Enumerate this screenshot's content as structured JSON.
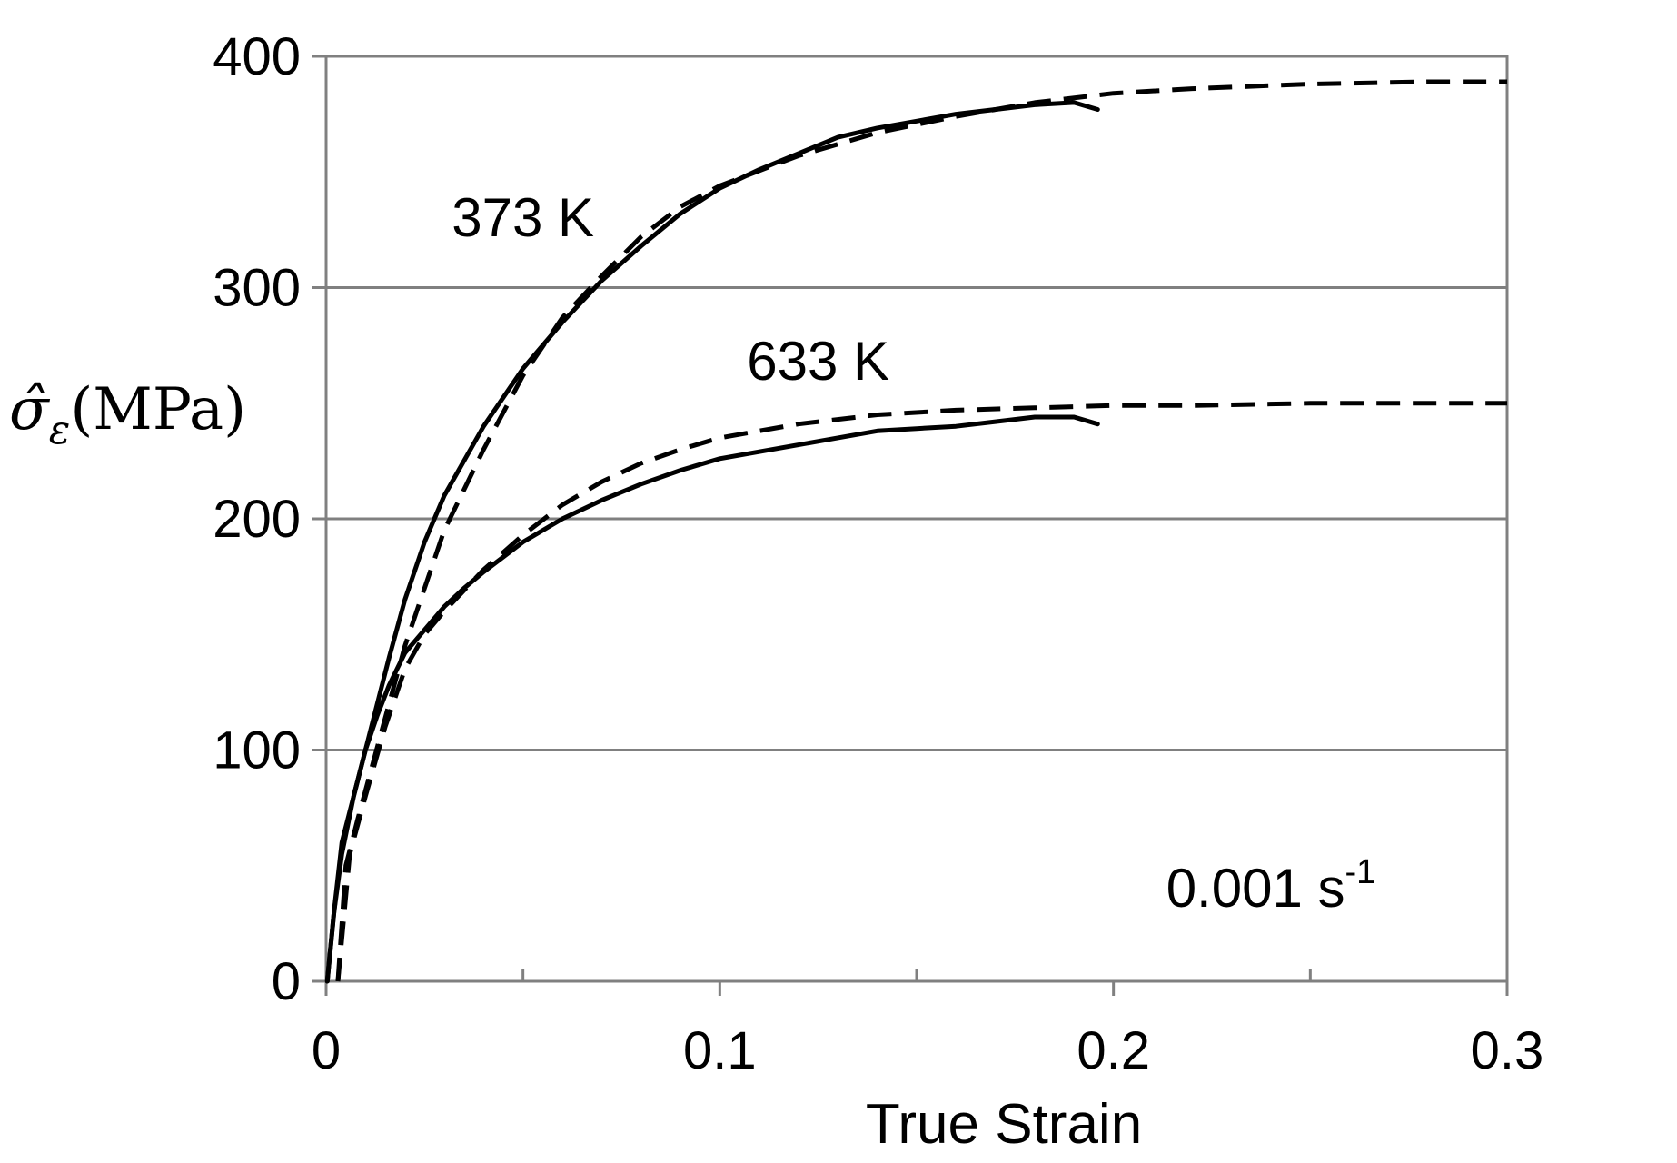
{
  "chart_data": {
    "type": "line",
    "title": "",
    "xlabel": "True Strain",
    "ylabel": "σ̂ε(MPa)",
    "ylabel_symbol": "σ̂",
    "ylabel_subscript": "ε",
    "ylabel_unit": "(MPa)",
    "xlim": [
      0,
      0.3
    ],
    "ylim": [
      0,
      400
    ],
    "xticks": [
      0,
      0.1,
      0.2,
      0.3
    ],
    "xtick_labels": [
      "0",
      "0.1",
      "0.2",
      "0.3"
    ],
    "xticks_minor": [
      0.05,
      0.15,
      0.25
    ],
    "yticks": [
      0,
      100,
      200,
      300,
      400
    ],
    "ytick_labels": [
      "0",
      "100",
      "200",
      "300",
      "400"
    ],
    "grid": "horizontal",
    "legend": "none",
    "annotations": [
      {
        "text": "373 K",
        "x": 0.05,
        "y": 330
      },
      {
        "text": "633 K",
        "x": 0.125,
        "y": 268
      },
      {
        "text": "0.001 s",
        "superscript": "-1",
        "x": 0.24,
        "y": 40
      }
    ],
    "series": [
      {
        "label": "373 K",
        "style": "solid",
        "x": [
          0.0003,
          0.002,
          0.004,
          0.007,
          0.01,
          0.013,
          0.016,
          0.02,
          0.025,
          0.03,
          0.04,
          0.05,
          0.06,
          0.07,
          0.08,
          0.09,
          0.1,
          0.11,
          0.12,
          0.13,
          0.14,
          0.15,
          0.16,
          0.17,
          0.18,
          0.19,
          0.196
        ],
        "y": [
          0,
          30,
          60,
          80,
          100,
          120,
          140,
          165,
          190,
          210,
          240,
          265,
          285,
          303,
          318,
          332,
          343,
          351,
          358,
          365,
          369,
          372,
          375,
          377,
          379,
          380,
          377
        ]
      },
      {
        "label": "373 K",
        "style": "dashed",
        "x": [
          0.003,
          0.005,
          0.008,
          0.012,
          0.016,
          0.02,
          0.025,
          0.03,
          0.04,
          0.05,
          0.06,
          0.07,
          0.08,
          0.09,
          0.1,
          0.12,
          0.14,
          0.16,
          0.18,
          0.2,
          0.22,
          0.25,
          0.28,
          0.3
        ],
        "y": [
          0,
          50,
          70,
          95,
          120,
          145,
          170,
          195,
          230,
          262,
          287,
          305,
          322,
          335,
          344,
          357,
          367,
          374,
          380,
          384,
          386,
          388,
          389,
          389
        ]
      },
      {
        "label": "633 K",
        "style": "solid",
        "x": [
          0.0003,
          0.002,
          0.004,
          0.007,
          0.01,
          0.013,
          0.016,
          0.02,
          0.025,
          0.03,
          0.035,
          0.04,
          0.05,
          0.06,
          0.07,
          0.08,
          0.09,
          0.1,
          0.11,
          0.12,
          0.13,
          0.14,
          0.15,
          0.16,
          0.17,
          0.18,
          0.19,
          0.196
        ],
        "y": [
          0,
          30,
          55,
          80,
          100,
          115,
          128,
          142,
          152,
          162,
          170,
          177,
          190,
          200,
          208,
          215,
          221,
          226,
          229,
          232,
          235,
          238,
          239,
          240,
          242,
          244,
          244,
          241
        ]
      },
      {
        "label": "633 K",
        "style": "dashed",
        "x": [
          0.003,
          0.006,
          0.01,
          0.015,
          0.02,
          0.025,
          0.03,
          0.04,
          0.05,
          0.06,
          0.07,
          0.08,
          0.09,
          0.1,
          0.12,
          0.14,
          0.16,
          0.18,
          0.2,
          0.22,
          0.25,
          0.28,
          0.3
        ],
        "y": [
          0,
          55,
          80,
          110,
          135,
          150,
          160,
          178,
          193,
          206,
          216,
          224,
          230,
          235,
          241,
          245,
          247,
          248,
          249,
          249,
          250,
          250,
          250
        ]
      }
    ]
  }
}
